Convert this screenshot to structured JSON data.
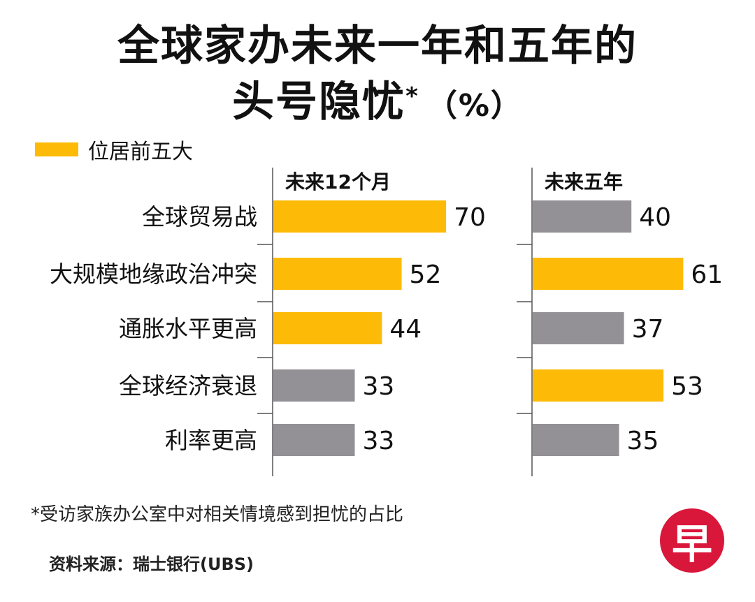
{
  "title": {
    "line1": "全球家办未来一年和五年的",
    "line2": "头号隐忧",
    "star": "*",
    "unit": "（%）"
  },
  "legend": {
    "label": "位居前五大"
  },
  "colors": {
    "highlight": "#FDBB08",
    "normal": "#939195",
    "axis": "#555555"
  },
  "chart_data": {
    "type": "bar",
    "orientation": "horizontal",
    "categories": [
      "全球贸易战",
      "大规模地缘政治冲突",
      "通胀水平更高",
      "全球经济衰退",
      "利率更高"
    ],
    "panels": [
      {
        "name": "未来12个月",
        "values": [
          70,
          52,
          44,
          33,
          33
        ],
        "top5": [
          true,
          true,
          true,
          false,
          false
        ]
      },
      {
        "name": "未来五年",
        "values": [
          40,
          61,
          37,
          53,
          35
        ],
        "top5": [
          false,
          true,
          false,
          true,
          false
        ]
      }
    ],
    "legend": [
      "位居前五大"
    ]
  },
  "footnote": "*受访家族办公室中对相关情境感到担忧的占比",
  "source": "资料来源：瑞士银行(UBS)",
  "logo_text": "早"
}
